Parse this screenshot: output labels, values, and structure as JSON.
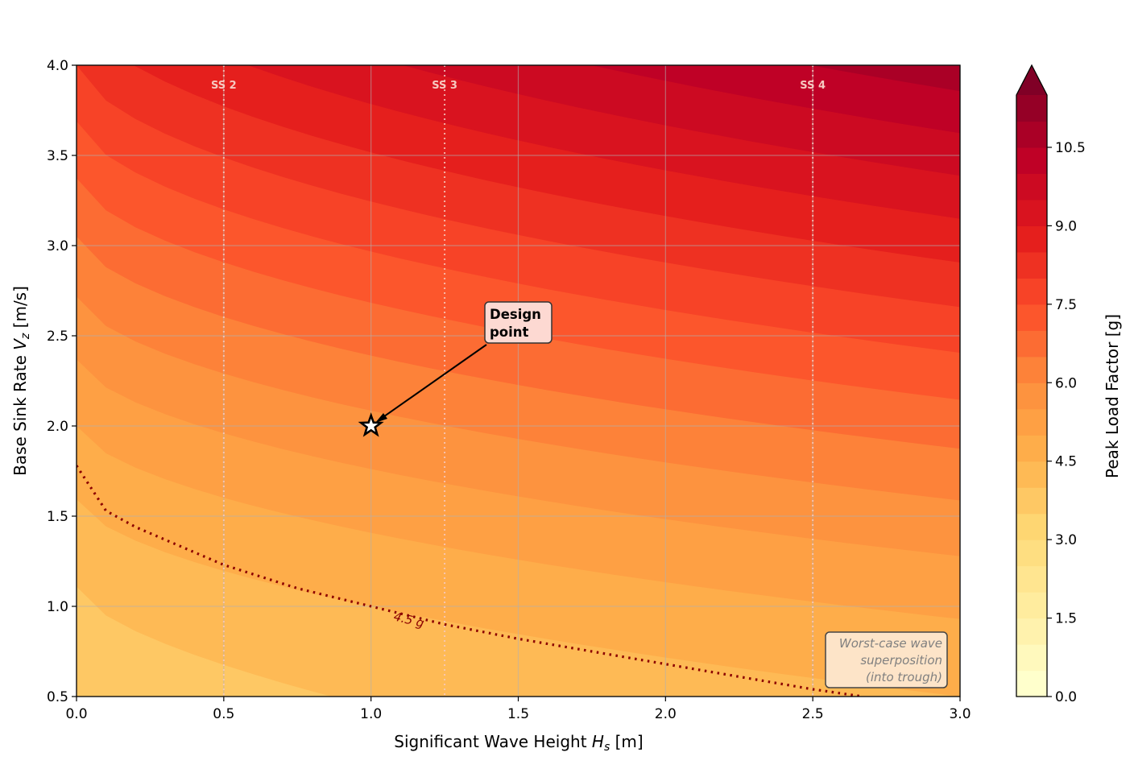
{
  "chart_data": {
    "type": "heatmap",
    "subtype": "filled-contour",
    "xlabel": "Significant Wave Height H_s [m]",
    "xlabel_main": "Significant Wave Height ",
    "xlabel_sym": "H",
    "xlabel_sub": "s",
    "xlabel_unit": " [m]",
    "ylabel_main": "Base Sink Rate ",
    "ylabel_sym": "V",
    "ylabel_sub": "z",
    "ylabel_unit": " [m/s]",
    "xlim": [
      0,
      3
    ],
    "ylim": [
      0.5,
      4
    ],
    "xticks": [
      "0.0",
      "0.5",
      "1.0",
      "1.5",
      "2.0",
      "2.5",
      "3.0"
    ],
    "yticks": [
      "0.5",
      "1.0",
      "1.5",
      "2.0",
      "2.5",
      "3.0",
      "3.5",
      "4.0"
    ],
    "grid": true,
    "colormap": "YlOrRd",
    "levels": {
      "min": 0,
      "max": 11.5,
      "step": 0.5
    },
    "extend": "max",
    "colorbar": {
      "label": "Peak Load Factor [g]",
      "ticks": [
        "0.0",
        "1.5",
        "3.0",
        "4.5",
        "6.0",
        "7.5",
        "9.0",
        "10.5"
      ],
      "placement": "right"
    },
    "contour_line": {
      "level": 4.5,
      "label": "4.5 g",
      "color": "#8b0000",
      "points": [
        [
          0,
          1.78
        ],
        [
          0.1,
          1.53
        ],
        [
          0.2,
          1.44
        ],
        [
          0.5,
          1.23
        ],
        [
          0.75,
          1.1
        ],
        [
          1.0,
          1.0
        ],
        [
          1.25,
          0.9
        ],
        [
          1.5,
          0.82
        ],
        [
          1.75,
          0.75
        ],
        [
          2.0,
          0.68
        ],
        [
          2.25,
          0.61
        ],
        [
          2.5,
          0.54
        ],
        [
          2.67,
          0.5
        ]
      ]
    },
    "sea_states": [
      {
        "label": "SS 2",
        "x": 0.5
      },
      {
        "label": "SS 3",
        "x": 1.25
      },
      {
        "label": "SS 4",
        "x": 2.5
      }
    ],
    "design_point": {
      "x": 1.0,
      "y": 2.0,
      "label_line1": "Design",
      "label_line2": "point"
    },
    "note": {
      "line1": "Worst-case wave",
      "line2": "superposition",
      "line3": "(into trough)"
    }
  }
}
